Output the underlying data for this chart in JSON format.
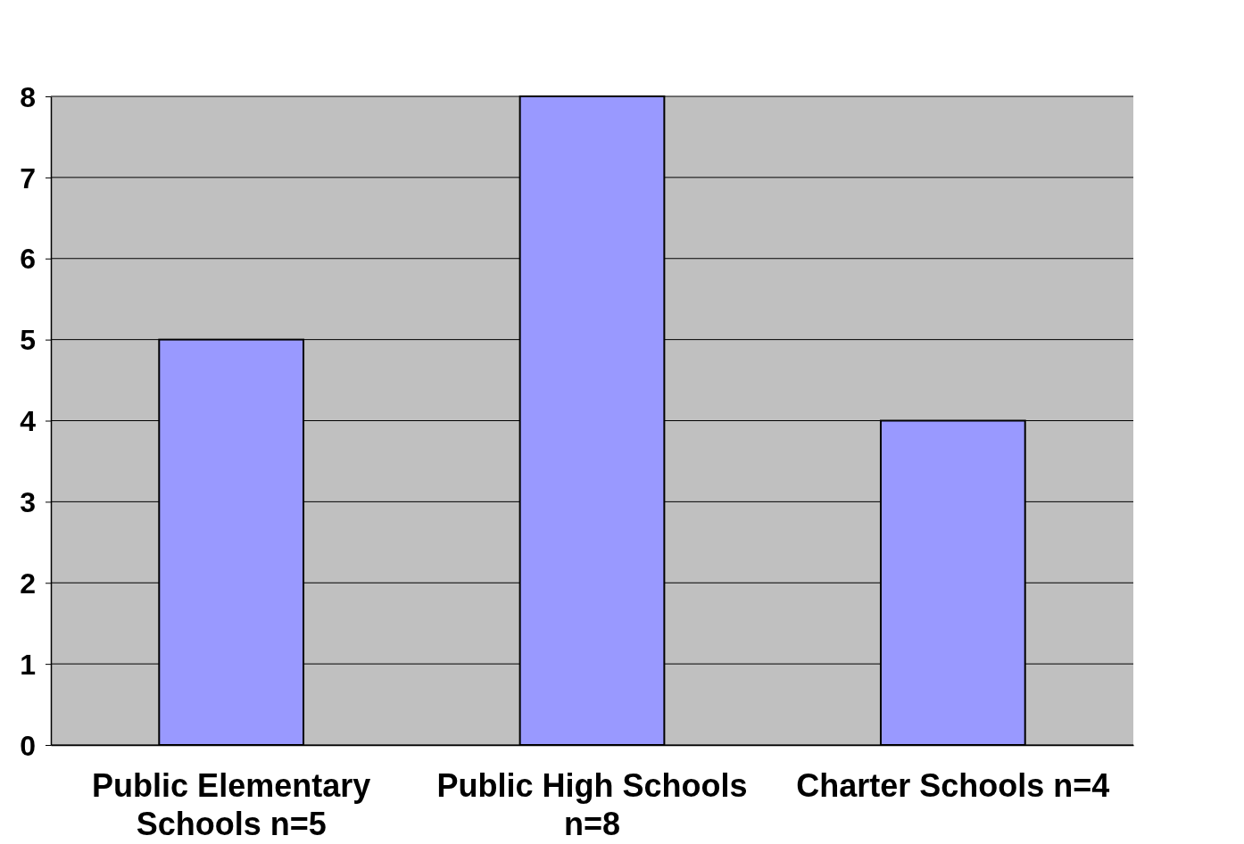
{
  "chart_data": {
    "type": "bar",
    "categories": [
      "Public Elementary Schools n=5",
      "Public High Schools n=8",
      "Charter Schools n=4"
    ],
    "values": [
      5,
      8,
      4
    ],
    "color": "#9999ff",
    "ylim": [
      0,
      8
    ],
    "yticks": [
      0,
      1,
      2,
      3,
      4,
      5,
      6,
      7,
      8
    ],
    "grid": "y"
  }
}
